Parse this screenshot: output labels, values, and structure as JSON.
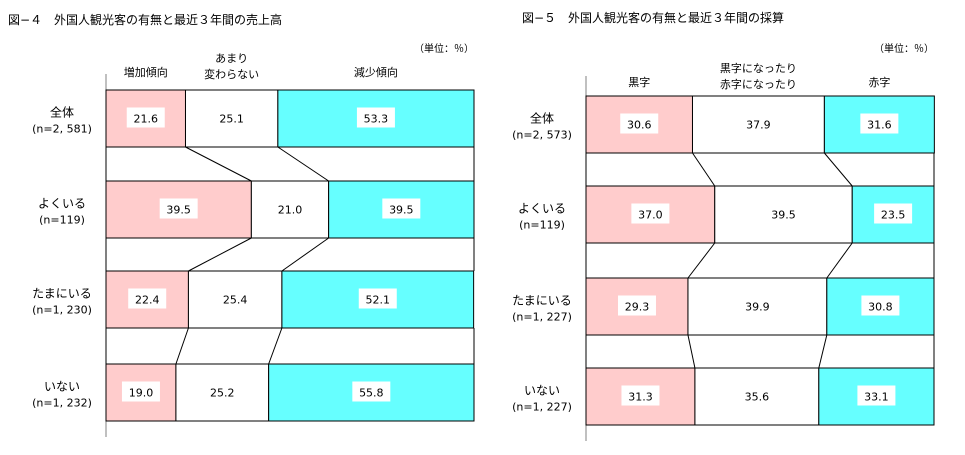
{
  "colors": {
    "positive": "#ffcccc",
    "neutral": "#ffffff",
    "negative": "#66ffff",
    "stroke": "#000000",
    "axis": "#808080"
  },
  "chart_data": [
    {
      "type": "bar",
      "stacked": true,
      "orientation": "horizontal",
      "normalized_to": 100,
      "title": "図−４　外国人観光客の有無と最近３年間の売上高",
      "unit": "（単位：％）",
      "series": [
        {
          "name": "増加傾向",
          "color": "#ffcccc"
        },
        {
          "name_lines": [
            "あまり",
            "変わらない"
          ],
          "color": "#ffffff"
        },
        {
          "name": "減少傾向",
          "color": "#66ffff"
        }
      ],
      "rows": [
        {
          "label": "全体",
          "n": "(n=2, 581)",
          "values": [
            21.6,
            25.1,
            53.3
          ]
        },
        {
          "label": "よくいる",
          "n": "(n=119)",
          "values": [
            39.5,
            21.0,
            39.5
          ]
        },
        {
          "label": "たまにいる",
          "n": "(n=1, 230)",
          "values": [
            22.4,
            25.4,
            52.1
          ]
        },
        {
          "label": "いない",
          "n": "(n=1, 232)",
          "values": [
            19.0,
            25.2,
            55.8
          ]
        }
      ]
    },
    {
      "type": "bar",
      "stacked": true,
      "orientation": "horizontal",
      "normalized_to": 100,
      "title": "図−５　外国人観光客の有無と最近３年間の採算",
      "unit": "（単位：％）",
      "series": [
        {
          "name": "黒字",
          "color": "#ffcccc"
        },
        {
          "name_lines": [
            "黒字になったり",
            "赤字になったり"
          ],
          "color": "#ffffff"
        },
        {
          "name": "赤字",
          "color": "#66ffff"
        }
      ],
      "rows": [
        {
          "label": "全体",
          "n": "(n=2, 573)",
          "values": [
            30.6,
            37.9,
            31.6
          ]
        },
        {
          "label": "よくいる",
          "n": "(n=119)",
          "values": [
            37.0,
            39.5,
            23.5
          ]
        },
        {
          "label": "たまにいる",
          "n": "(n=1, 227)",
          "values": [
            29.3,
            39.9,
            30.8
          ]
        },
        {
          "label": "いない",
          "n": "(n=1, 227)",
          "values": [
            31.3,
            35.6,
            33.1
          ]
        }
      ]
    }
  ]
}
